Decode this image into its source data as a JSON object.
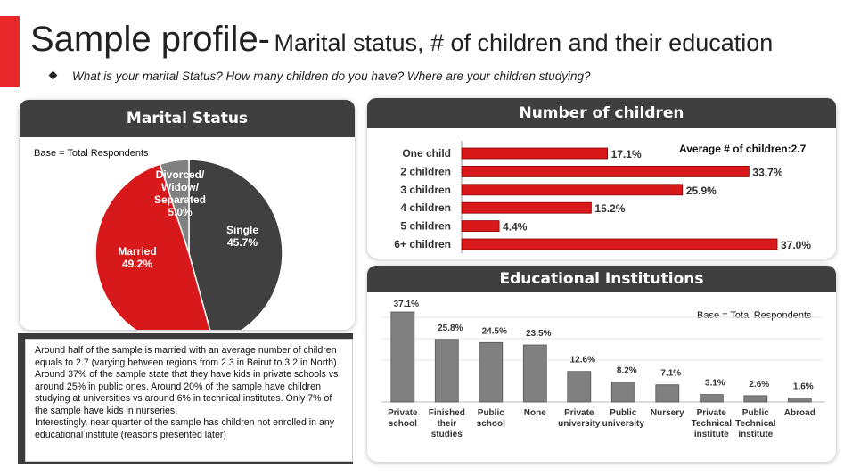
{
  "header": {
    "title_main": "Sample profile-",
    "title_sub": "Marital status, # of children and their education",
    "question": "What is your marital Status? How many children do you have? Where are your children studying?"
  },
  "colors": {
    "accent": "#e8282b",
    "dark": "#3f3f3f",
    "red": "#d7191c",
    "grey": "#808080"
  },
  "marital": {
    "title": "Marital Status",
    "base_note": "Base = Total Respondents"
  },
  "children": {
    "title": "Number of children",
    "average_label": "Average # of children:2.7"
  },
  "education": {
    "title": "Educational Institutions",
    "base_note": "Base = Total Respondents"
  },
  "summary": {
    "paragraphs": [
      "Around half of the sample is married with an average number of children equals to 2.7 (varying between regions from 2.3 in Beirut to 3.2 in North).",
      "Around 37% of the sample state that they have kids in private schools vs around 25% in public ones. Around 20% of the sample have children studying at universities vs around 6% in technical institutes. Only 7% of the sample have kids in nurseries.",
      "Interestingly, near quarter of the sample has children not enrolled in any educational institute (reasons presented later)"
    ]
  },
  "chart_data": [
    {
      "type": "pie",
      "title": "Marital Status",
      "slices": [
        {
          "name": "Single",
          "value": 45.7,
          "label": "45.7%",
          "color": "#404040"
        },
        {
          "name": "Married",
          "value": 49.2,
          "label": "49.2%",
          "color": "#d7191c"
        },
        {
          "name": "Divorced/ Widow/ Separated",
          "label_lines": [
            "Divorced/",
            "Widow/",
            "Separated"
          ],
          "value": 5.0,
          "label": "5.0%",
          "color": "#808080"
        }
      ]
    },
    {
      "type": "bar",
      "orientation": "horizontal",
      "title": "Number of children",
      "categories": [
        "One child",
        "2 children",
        "3 children",
        "4 children",
        "5 children",
        "6+ children"
      ],
      "values": [
        17.1,
        33.7,
        25.9,
        15.2,
        4.4,
        37.0
      ],
      "labels": [
        "17.1%",
        "33.7%",
        "25.9%",
        "15.2%",
        "4.4%",
        "37.0%"
      ],
      "xlim": [
        0,
        37.0
      ]
    },
    {
      "type": "bar",
      "title": "Educational Institutions",
      "categories": [
        [
          "Private",
          "school"
        ],
        [
          "Finished",
          "their",
          "studies"
        ],
        [
          "Public",
          "school"
        ],
        [
          "None"
        ],
        [
          "Private",
          "university"
        ],
        [
          "Public",
          "university"
        ],
        [
          "Nursery"
        ],
        [
          "Private",
          "Technical",
          "institute"
        ],
        [
          "Public",
          "Technical",
          "institute"
        ],
        [
          "Abroad"
        ]
      ],
      "values": [
        37.1,
        25.8,
        24.5,
        23.5,
        12.6,
        8.2,
        7.1,
        3.1,
        2.6,
        1.6
      ],
      "labels": [
        "37.1%",
        "25.8%",
        "24.5%",
        "23.5%",
        "12.6%",
        "8.2%",
        "7.1%",
        "3.1%",
        "2.6%",
        "1.6%"
      ],
      "ylim": [
        0,
        37.1
      ]
    }
  ]
}
